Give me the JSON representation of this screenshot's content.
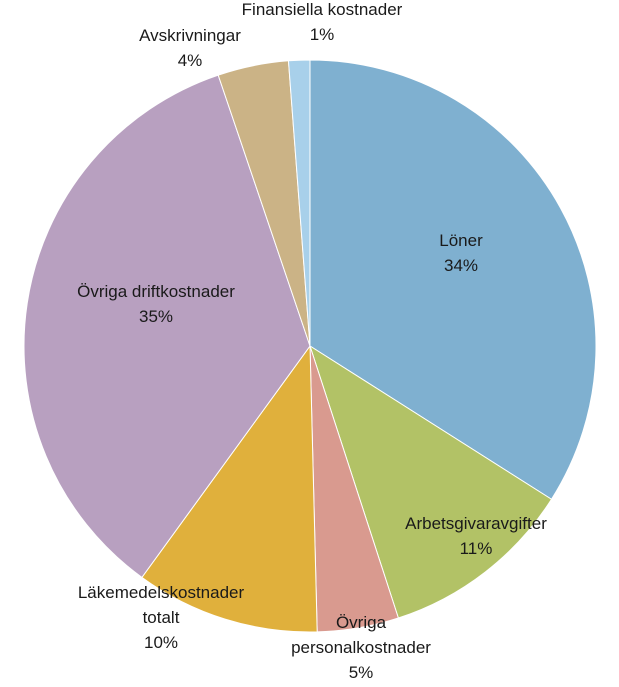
{
  "chart_data": {
    "type": "pie",
    "start_angle_deg": 0,
    "direction": "clockwise",
    "slices": [
      {
        "label": [
          "Löner"
        ],
        "percent_label": "34%",
        "value": 34.0,
        "color": "#7fb0d0"
      },
      {
        "label": [
          "Arbetsgivaravgifter"
        ],
        "percent_label": "11%",
        "value": 11.0,
        "color": "#b2c266"
      },
      {
        "label": [
          "Övriga",
          "personalkostnader"
        ],
        "percent_label": "5%",
        "value": 4.6,
        "color": "#d99a8f"
      },
      {
        "label": [
          "Läkemedelskostnader",
          "totalt"
        ],
        "percent_label": "10%",
        "value": 10.4,
        "color": "#e0b03c"
      },
      {
        "label": [
          "Övriga driftkostnader"
        ],
        "percent_label": "35%",
        "value": 34.8,
        "color": "#b8a0c0"
      },
      {
        "label": [
          "Avskrivningar"
        ],
        "percent_label": "4%",
        "value": 4.0,
        "color": "#cbb386"
      },
      {
        "label": [
          "Finansiella kostnader"
        ],
        "percent_label": "1%",
        "value": 1.2,
        "color": "#a8d0ea"
      }
    ]
  }
}
